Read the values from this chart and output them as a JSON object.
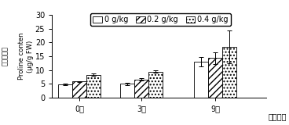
{
  "groups": [
    "0天",
    "3天",
    "9天"
  ],
  "series_labels": [
    "0 g/kg",
    "0.2 g/kg",
    "0.4 g/kg"
  ],
  "values": [
    [
      4.8,
      5.8,
      8.3
    ],
    [
      5.0,
      6.6,
      9.4
    ],
    [
      13.0,
      14.3,
      18.5
    ]
  ],
  "errors": [
    [
      0.3,
      0.25,
      0.4
    ],
    [
      0.4,
      0.5,
      0.45
    ],
    [
      1.8,
      2.0,
      6.0
    ]
  ],
  "ylim": [
    0,
    30
  ],
  "yticks": [
    0,
    5,
    10,
    15,
    20,
    25,
    30
  ],
  "ylabel_cn": "脂氨酸含量",
  "ylabel_en": "Proline conten",
  "ylabel_unit": "(μg/g FW)",
  "xlabel": "胁迫时间",
  "bar_width": 0.18,
  "group_positions": [
    0.35,
    1.15,
    2.1
  ],
  "colors": [
    "white",
    "white",
    "white"
  ],
  "hatches": [
    "",
    "////",
    "...."
  ],
  "edgecolor": "black",
  "tick_fontsize": 7,
  "legend_fontsize": 7,
  "ylabel_fontsize": 6
}
